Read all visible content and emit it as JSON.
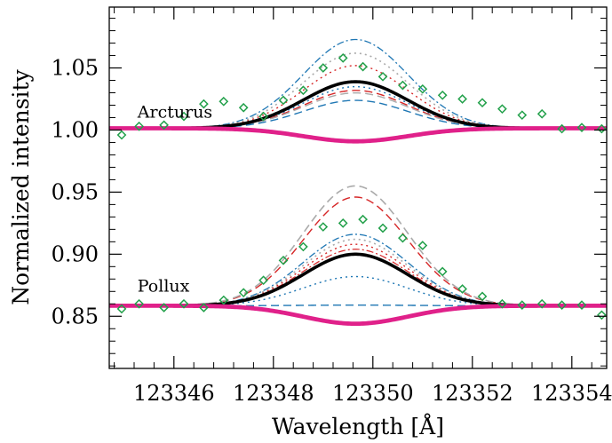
{
  "chart_data": {
    "type": "line",
    "xlabel": "Wavelength [Å]",
    "ylabel": "Normalized intensity",
    "xlim": [
      123344.7,
      123354.7
    ],
    "ylim": [
      0.808,
      1.099
    ],
    "xticks": [
      123346,
      123348,
      123350,
      123352,
      123354
    ],
    "xtick_labels": [
      "123346",
      "123348",
      "123350",
      "123352",
      "123354"
    ],
    "yticks": [
      0.85,
      0.9,
      0.95,
      1.0,
      1.05
    ],
    "ytick_labels": [
      "0.85",
      "0.90",
      "0.95",
      "1.00",
      "1.05"
    ],
    "grid": false,
    "annotations": [
      {
        "text": "Arcturus",
        "x": 123345.0,
        "y": 1.01
      },
      {
        "text": "Pollux",
        "x": 123345.0,
        "y": 0.87
      }
    ],
    "line_center": 123349.65,
    "line_width_sigma": 1.05,
    "panels": [
      {
        "name": "Arcturus",
        "baseline": 1.0014,
        "observed": {
          "marker": "diamond",
          "color": "#22a04a",
          "x": [
            123344.95,
            123345.3,
            123345.8,
            123346.2,
            123346.6,
            123347.0,
            123347.4,
            123347.8,
            123348.2,
            123348.6,
            123349.0,
            123349.4,
            123349.8,
            123350.2,
            123350.6,
            123351.0,
            123351.4,
            123351.8,
            123352.2,
            123352.6,
            123353.0,
            123353.4,
            123353.8,
            123354.2,
            123354.6
          ],
          "y": [
            0.996,
            1.003,
            1.004,
            1.011,
            1.021,
            1.023,
            1.018,
            1.011,
            1.024,
            1.032,
            1.05,
            1.058,
            1.051,
            1.043,
            1.036,
            1.033,
            1.028,
            1.025,
            1.022,
            1.017,
            1.012,
            1.013,
            1.001,
            1.002,
            1.001
          ]
        },
        "series": [
          {
            "amplitude": 0.0375,
            "color": "#000000",
            "style": "solid",
            "width": 3.6
          },
          {
            "amplitude": -0.0105,
            "color": "#e0218a",
            "style": "solid",
            "width": 4.8
          },
          {
            "amplitude": 0.0715,
            "color": "#1f77b4",
            "style": "dashdot",
            "width": 1.3
          },
          {
            "amplitude": 0.0605,
            "color": "#aaaaaa",
            "style": "dotted",
            "width": 1.6
          },
          {
            "amplitude": 0.0505,
            "color": "#d62728",
            "style": "dotted",
            "width": 1.4
          },
          {
            "amplitude": 0.0335,
            "color": "#1f77b4",
            "style": "dotted",
            "width": 1.4
          },
          {
            "amplitude": 0.0305,
            "color": "#d62728",
            "style": "dashed",
            "width": 1.4
          },
          {
            "amplitude": 0.0285,
            "color": "#aaaaaa",
            "style": "dashed",
            "width": 1.4
          },
          {
            "amplitude": 0.0225,
            "color": "#1f77b4",
            "style": "dashed",
            "width": 1.4
          }
        ]
      },
      {
        "name": "Pollux",
        "baseline": 0.8585,
        "observed": {
          "marker": "diamond",
          "color": "#22a04a",
          "x": [
            123344.95,
            123345.3,
            123345.8,
            123346.2,
            123346.6,
            123347.0,
            123347.4,
            123347.8,
            123348.2,
            123348.6,
            123349.0,
            123349.4,
            123349.8,
            123350.2,
            123350.6,
            123351.0,
            123351.4,
            123351.8,
            123352.2,
            123352.6,
            123353.0,
            123353.4,
            123353.8,
            123354.2,
            123354.6
          ],
          "y": [
            0.856,
            0.86,
            0.857,
            0.86,
            0.857,
            0.863,
            0.869,
            0.879,
            0.895,
            0.906,
            0.922,
            0.925,
            0.928,
            0.921,
            0.913,
            0.907,
            0.886,
            0.872,
            0.866,
            0.86,
            0.859,
            0.86,
            0.859,
            0.859,
            0.851
          ]
        },
        "series": [
          {
            "amplitude": 0.0415,
            "color": "#000000",
            "style": "solid",
            "width": 3.6
          },
          {
            "amplitude": -0.0145,
            "color": "#e0218a",
            "style": "solid",
            "width": 4.8
          },
          {
            "amplitude": 0.0965,
            "color": "#aaaaaa",
            "style": "dashed",
            "width": 1.6
          },
          {
            "amplitude": 0.0875,
            "color": "#d62728",
            "style": "dashed",
            "width": 1.4
          },
          {
            "amplitude": 0.0575,
            "color": "#1f77b4",
            "style": "dashdot",
            "width": 1.3
          },
          {
            "amplitude": 0.0535,
            "color": "#aaaaaa",
            "style": "dotted",
            "width": 1.6
          },
          {
            "amplitude": 0.0495,
            "color": "#d62728",
            "style": "dotted",
            "width": 1.4
          },
          {
            "amplitude": 0.0455,
            "color": "#d62728",
            "style": "dashdot",
            "width": 1.2
          },
          {
            "amplitude": 0.0235,
            "color": "#1f77b4",
            "style": "dotted",
            "width": 1.4
          },
          {
            "amplitude": 0.0005,
            "color": "#1f77b4",
            "style": "dashed",
            "width": 1.4
          }
        ]
      }
    ]
  }
}
